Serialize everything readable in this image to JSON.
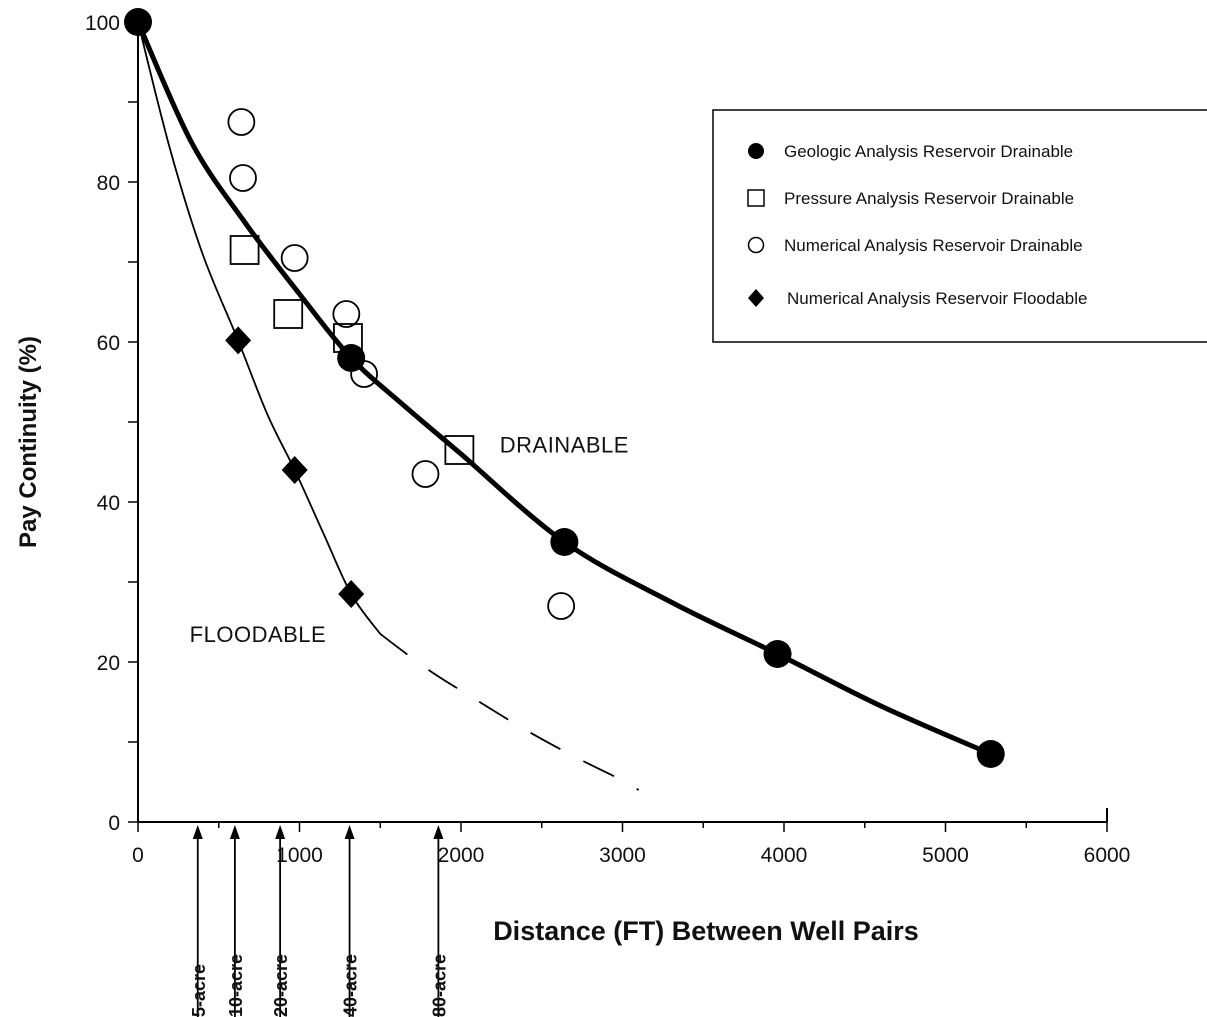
{
  "chart_data": {
    "type": "scatter",
    "title": "",
    "xlabel": "Distance (FT) Between Well Pairs",
    "ylabel": "Pay Continuity (%)",
    "xlim": [
      0,
      6000
    ],
    "ylim": [
      0,
      100
    ],
    "x_ticks": [
      "0",
      "1000",
      "2000",
      "3000",
      "4000",
      "5000",
      "6000"
    ],
    "y_ticks": [
      "0",
      "20",
      "40",
      "60",
      "80",
      "100"
    ],
    "grid": false,
    "legend_position": "top-right",
    "series": [
      {
        "name": "Geologic Analysis Reservoir Drainable",
        "marker": "filled-circle",
        "points": [
          [
            0,
            100
          ],
          [
            1320,
            58
          ],
          [
            2640,
            35
          ],
          [
            3960,
            21
          ],
          [
            5280,
            8.5
          ]
        ]
      },
      {
        "name": "Pressure Analysis Reservoir Drainable",
        "marker": "open-square",
        "points": [
          [
            660,
            71.5
          ],
          [
            930,
            63.5
          ],
          [
            1300,
            60.5
          ],
          [
            1990,
            46.5
          ]
        ]
      },
      {
        "name": "Numerical Analysis Reservoir Drainable",
        "marker": "open-circle",
        "points": [
          [
            640,
            87.5
          ],
          [
            650,
            80.5
          ],
          [
            970,
            70.5
          ],
          [
            1290,
            63.5
          ],
          [
            1400,
            56
          ],
          [
            1780,
            43.5
          ],
          [
            2620,
            27
          ]
        ]
      },
      {
        "name": "Numerical Analysis Reservoir Floodable",
        "marker": "filled-diamond",
        "points": [
          [
            620,
            60.2
          ],
          [
            970,
            44
          ],
          [
            1320,
            28.5
          ]
        ]
      }
    ],
    "curves": [
      {
        "label": "DRAINABLE",
        "style": "thick-solid",
        "points": [
          [
            0,
            100
          ],
          [
            330,
            85
          ],
          [
            660,
            75
          ],
          [
            1000,
            66
          ],
          [
            1320,
            58
          ],
          [
            1650,
            52
          ],
          [
            2000,
            46
          ],
          [
            2640,
            35
          ],
          [
            3300,
            27.5
          ],
          [
            3960,
            21
          ],
          [
            4600,
            14.5
          ],
          [
            5280,
            8.5
          ]
        ]
      },
      {
        "label": "FLOODABLE",
        "style": "thin-solid",
        "points": [
          [
            0,
            100
          ],
          [
            200,
            84
          ],
          [
            400,
            71
          ],
          [
            620,
            60.2
          ],
          [
            800,
            51
          ],
          [
            970,
            44
          ],
          [
            1150,
            36
          ],
          [
            1320,
            28.5
          ],
          [
            1500,
            23.5
          ]
        ]
      },
      {
        "label": "",
        "style": "dashed",
        "points": [
          [
            1500,
            23.5
          ],
          [
            1800,
            19
          ],
          [
            2100,
            15.2
          ],
          [
            2400,
            11.5
          ],
          [
            2700,
            8.2
          ],
          [
            3000,
            5.2
          ],
          [
            3100,
            4
          ]
        ]
      }
    ],
    "annotations": [
      {
        "text": "DRAINABLE",
        "x": 2240,
        "y": 46.2
      },
      {
        "text": "FLOODABLE",
        "x": 320,
        "y": 22.5
      }
    ],
    "well_spacing_markers": [
      {
        "label": "5-acre",
        "x": 370
      },
      {
        "label": "10-acre",
        "x": 600
      },
      {
        "label": "20-acre",
        "x": 880
      },
      {
        "label": "40-acre",
        "x": 1310
      },
      {
        "label": "80-acre",
        "x": 1860
      }
    ]
  }
}
